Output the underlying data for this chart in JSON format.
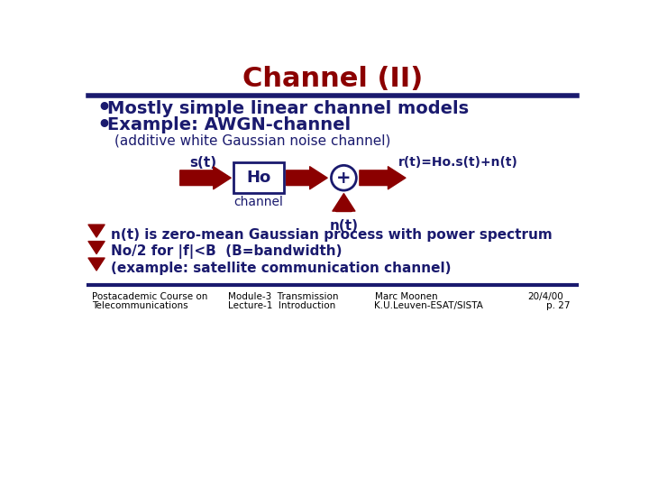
{
  "title": "Channel (II)",
  "title_color": "#8B0000",
  "title_fontsize": 22,
  "separator_color": "#1a1a6e",
  "bullet1": "Mostly simple linear channel models",
  "bullet2": "Example: AWGN-channel",
  "subtitle": "(additive white Gaussian noise channel)",
  "label_st": "s(t)",
  "label_Ho": "Ho",
  "label_channel": "channel",
  "label_plus": "+",
  "label_nt": "n(t)",
  "label_rt": "r(t)=Ho.s(t)+n(t)",
  "text1": "n(t) is zero-mean Gaussian process with power spectrum",
  "text2": "No/2 for |f|<B  (B=bandwidth)",
  "text3": "(example: satellite communication channel)",
  "footer_left1": "Postacademic Course on",
  "footer_left2": "Telecommunications",
  "footer_mid1": "Module-3  Transmission",
  "footer_mid2": "Lecture-1  Introduction",
  "footer_right1": "Marc Moonen",
  "footer_right2": "K.U.Leuven-ESAT/SISTA",
  "footer_date": "20/4/00",
  "footer_page": "p. 27",
  "dark_red": "#8B0000",
  "dark_blue": "#1a1a6e",
  "bg_color": "#ffffff",
  "text_color": "#1a1a6e"
}
